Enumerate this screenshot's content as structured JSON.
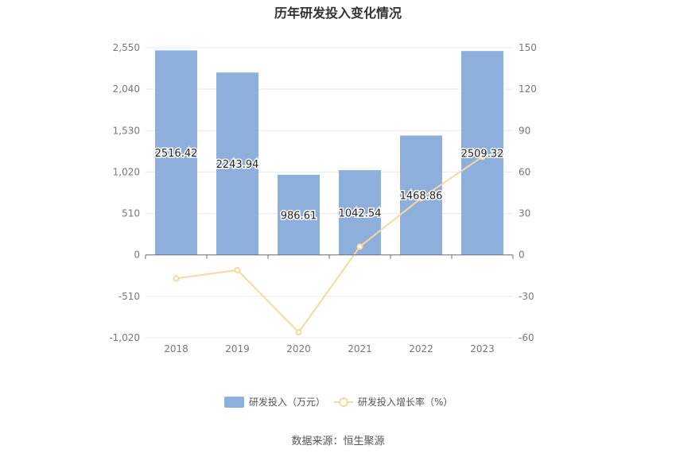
{
  "chart_data": {
    "type": "bar",
    "title": "历年研发投入变化情况",
    "categories": [
      "2018",
      "2019",
      "2020",
      "2021",
      "2022",
      "2023"
    ],
    "series": [
      {
        "name": "研发投入（万元）",
        "kind": "bar",
        "axis": "left",
        "color": "#8eaedb",
        "values": [
          2516.42,
          2243.94,
          986.61,
          1042.54,
          1468.86,
          2509.32
        ]
      },
      {
        "name": "研发投入增长率（%）",
        "kind": "line",
        "axis": "right",
        "color": "#f7d9a0",
        "values": [
          -17,
          -11,
          -56,
          6,
          41,
          71
        ]
      }
    ],
    "data_labels": [
      "2516.42",
      "2243.94",
      "986.61",
      "1042.54",
      "1468.86",
      "2509.32"
    ],
    "y_left": {
      "ylim": [
        -1020,
        2550
      ],
      "ticks": [
        "2,550",
        "2,040",
        "1,530",
        "1,020",
        "510",
        "0",
        "-510",
        "-1,020"
      ]
    },
    "y_right": {
      "ylim": [
        -60,
        150
      ],
      "ticks": [
        "150",
        "120",
        "90",
        "60",
        "30",
        "0",
        "-30",
        "-60"
      ]
    },
    "grid": true,
    "legend": "bottom-center"
  },
  "source": "数据来源：恒生聚源"
}
